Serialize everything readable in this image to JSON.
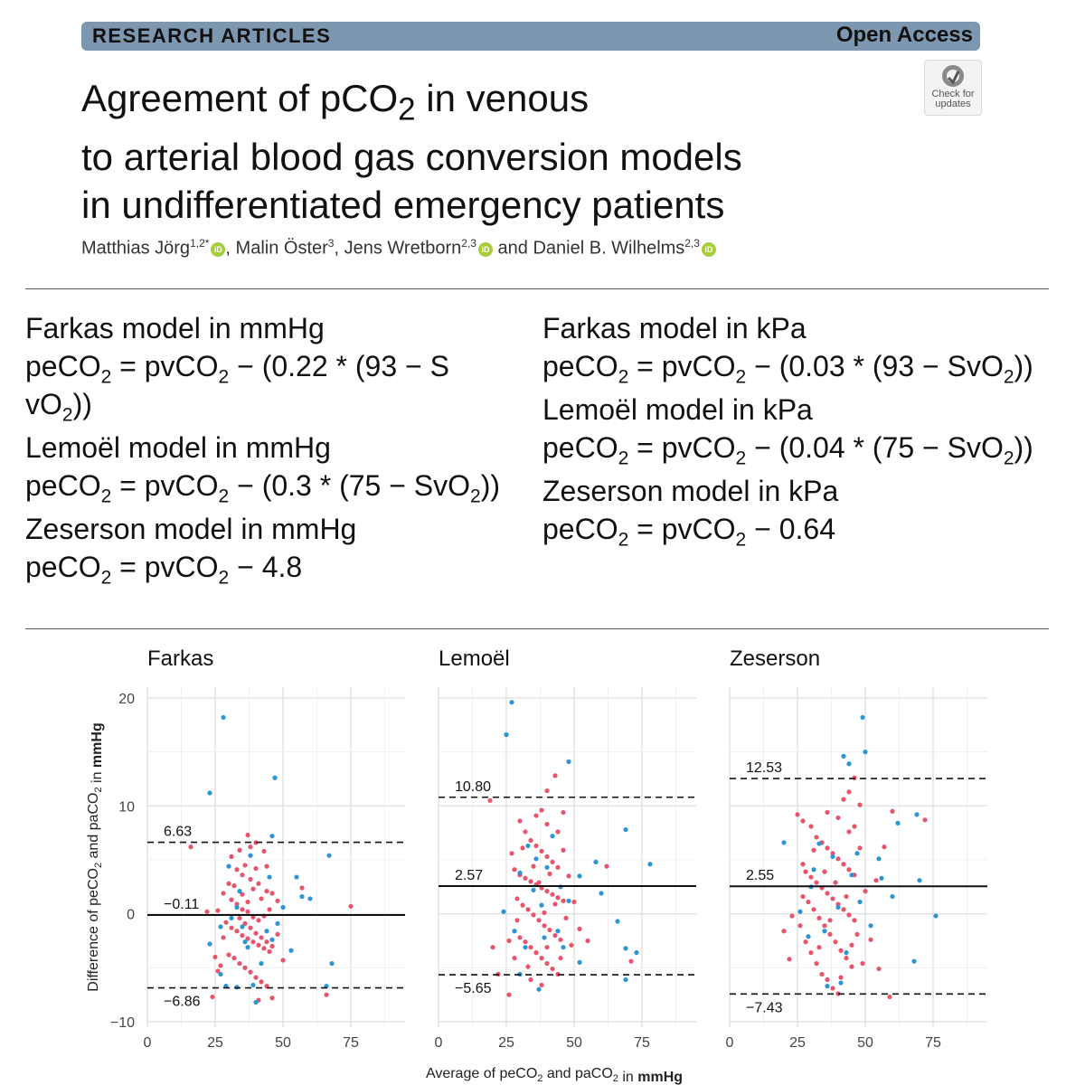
{
  "header": {
    "section": "RESEARCH ARTICLES",
    "access": "Open Access",
    "check_updates": [
      "Check for",
      "updates"
    ]
  },
  "title_lines": [
    [
      "Agreement of pCO",
      "2",
      " in venous"
    ],
    [
      "to arterial blood gas conversion models"
    ],
    [
      "in undifferentiated emergency patients"
    ]
  ],
  "authors": [
    {
      "name": "Matthias Jörg",
      "aff": "1,2*",
      "orcid": true,
      "sep": ", "
    },
    {
      "name": "Malin Öster",
      "aff": "3",
      "orcid": false,
      "sep": ", "
    },
    {
      "name": "Jens Wretborn",
      "aff": "2,3",
      "orcid": true,
      "sep": " and "
    },
    {
      "name": "Daniel B. Wilhelms",
      "aff": "2,3",
      "orcid": true,
      "sep": ""
    }
  ],
  "formulas": {
    "left": [
      {
        "name": "Farkas model in mmHg",
        "lines": [
          [
            "peCO",
            "2",
            " = pvCO",
            "2",
            " − (0.22 * (93 − S"
          ],
          [
            "vO",
            "2",
            "))"
          ]
        ]
      },
      {
        "name": "Lemoël model in mmHg",
        "lines": [
          [
            "peCO",
            "2",
            " = pvCO",
            "2",
            " − (0.3 * (75 − SvO",
            "2",
            "))"
          ]
        ]
      },
      {
        "name": "Zeserson model in mmHg",
        "lines": [
          [
            "peCO",
            "2",
            " = pvCO",
            "2",
            " − 4.8"
          ]
        ]
      }
    ],
    "right": [
      {
        "name": "Farkas model in kPa",
        "lines": [
          [
            "peCO",
            "2",
            " = pvCO",
            "2",
            " − (0.03 * (93 − SvO",
            "2",
            "))"
          ]
        ]
      },
      {
        "name": "Lemoël model in kPa",
        "lines": [
          [
            "peCO",
            "2",
            " = pvCO",
            "2",
            " − (0.04 * (75 − SvO",
            "2",
            "))"
          ]
        ]
      },
      {
        "name": "Zeserson model in kPa",
        "lines": [
          [
            "peCO",
            "2",
            " = pvCO",
            "2",
            " − 0.64"
          ]
        ]
      }
    ]
  },
  "chart_data": [
    {
      "type": "scatter",
      "title": "Farkas",
      "xlim": [
        0,
        95
      ],
      "ylim": [
        -10.5,
        21
      ],
      "x_ticks": [
        0,
        25,
        50,
        75
      ],
      "y_ticks": [
        -10,
        0,
        10,
        20
      ],
      "mean": -0.11,
      "loa_upper": 6.63,
      "loa_lower": -6.86,
      "labels": {
        "mean": "−0.11",
        "upper": "6.63",
        "lower": "−6.86"
      },
      "colors": {
        "blue": "#2b95d6",
        "red": "#e8546c"
      },
      "series_blue": [
        [
          28,
          18.2
        ],
        [
          23,
          11.2
        ],
        [
          47,
          12.6
        ],
        [
          46,
          7.2
        ],
        [
          67,
          5.4
        ],
        [
          55,
          3.4
        ],
        [
          57,
          1.6
        ],
        [
          60,
          1.4
        ],
        [
          50,
          0.6
        ],
        [
          48,
          -0.9
        ],
        [
          46,
          -2.4
        ],
        [
          53,
          -3.4
        ],
        [
          42,
          -4.6
        ],
        [
          68,
          -4.6
        ],
        [
          39,
          -6.6
        ],
        [
          66,
          -6.7
        ],
        [
          40,
          -8.2
        ],
        [
          33,
          -6.8
        ],
        [
          29,
          -6.7
        ],
        [
          23,
          -2.8
        ],
        [
          27,
          -5.6
        ],
        [
          31,
          -0.4
        ],
        [
          35,
          -1.2
        ],
        [
          44,
          -1.6
        ],
        [
          36,
          -2.6
        ],
        [
          30,
          4.4
        ],
        [
          38,
          5.4
        ],
        [
          33,
          0.6
        ],
        [
          45,
          3.4
        ],
        [
          34,
          2.1
        ],
        [
          37,
          -3.1
        ],
        [
          27,
          -1.2
        ]
      ],
      "series_red": [
        [
          16,
          6.2
        ],
        [
          57,
          2.4
        ],
        [
          66,
          -7.5
        ],
        [
          75,
          0.7
        ],
        [
          41,
          -8
        ],
        [
          46,
          -7.8
        ],
        [
          24,
          -7.7
        ],
        [
          26,
          -5.3
        ],
        [
          37,
          7.3
        ],
        [
          40,
          6.6
        ],
        [
          43,
          5.8
        ],
        [
          31,
          5.3
        ],
        [
          33,
          4.1
        ],
        [
          35,
          3.6
        ],
        [
          38,
          3.2
        ],
        [
          41,
          2.8
        ],
        [
          44,
          2.1
        ],
        [
          28,
          1.9
        ],
        [
          31,
          1.3
        ],
        [
          33,
          0.9
        ],
        [
          35,
          0.4
        ],
        [
          37,
          0.2
        ],
        [
          39,
          -0.3
        ],
        [
          41,
          -0.6
        ],
        [
          43,
          -0.2
        ],
        [
          45,
          0.4
        ],
        [
          29,
          -0.8
        ],
        [
          31,
          -1.3
        ],
        [
          33,
          -1.6
        ],
        [
          35,
          -2
        ],
        [
          37,
          -2.3
        ],
        [
          39,
          -2.6
        ],
        [
          41,
          -2.9
        ],
        [
          43,
          -3.2
        ],
        [
          45,
          -3.5
        ],
        [
          30,
          -3.8
        ],
        [
          32,
          -4.1
        ],
        [
          34,
          -4.6
        ],
        [
          36,
          -5
        ],
        [
          38,
          -5.4
        ],
        [
          40,
          -5.9
        ],
        [
          42,
          -6.3
        ],
        [
          44,
          -6.7
        ],
        [
          27,
          -4.8
        ],
        [
          25,
          -4
        ],
        [
          35,
          1.8
        ],
        [
          37,
          1.1
        ],
        [
          39,
          2.3
        ],
        [
          32,
          2.6
        ],
        [
          34,
          -0.4
        ],
        [
          36,
          -0.9
        ],
        [
          38,
          -1.3
        ],
        [
          40,
          -1.8
        ],
        [
          42,
          -2.2
        ],
        [
          44,
          -2.6
        ],
        [
          46,
          -3
        ],
        [
          26,
          0.3
        ],
        [
          28,
          -2.2
        ],
        [
          48,
          -1.9
        ],
        [
          50,
          -4.3
        ],
        [
          36,
          4.5
        ],
        [
          40,
          4.2
        ],
        [
          30,
          2.8
        ],
        [
          42,
          1.4
        ],
        [
          22,
          0.2
        ],
        [
          34,
          5.9
        ],
        [
          38,
          6.2
        ],
        [
          44,
          4.4
        ],
        [
          46,
          1.9
        ],
        [
          48,
          1.2
        ]
      ]
    },
    {
      "type": "scatter",
      "title": "Lemoël",
      "xlim": [
        0,
        95
      ],
      "ylim": [
        -10.5,
        21
      ],
      "x_ticks": [
        0,
        25,
        50,
        75
      ],
      "y_ticks": [
        -10,
        0,
        10,
        20
      ],
      "mean": 2.57,
      "loa_upper": 10.8,
      "loa_lower": -5.65,
      "labels": {
        "mean": "2.57",
        "upper": "10.80",
        "lower": "−5.65"
      },
      "colors": {
        "blue": "#2b95d6",
        "red": "#e8546c"
      },
      "series_blue": [
        [
          27,
          19.6
        ],
        [
          25,
          16.6
        ],
        [
          48,
          14.1
        ],
        [
          78,
          4.6
        ],
        [
          69,
          7.8
        ],
        [
          58,
          4.8
        ],
        [
          60,
          1.9
        ],
        [
          66,
          -0.7
        ],
        [
          69,
          -3.2
        ],
        [
          73,
          -3.6
        ],
        [
          69,
          -6.1
        ],
        [
          52,
          -4.5
        ],
        [
          37,
          -7
        ],
        [
          30,
          -5.6
        ],
        [
          48,
          1.2
        ],
        [
          45,
          2.5
        ],
        [
          33,
          6.3
        ],
        [
          36,
          5.1
        ],
        [
          40,
          4.3
        ],
        [
          42,
          7.2
        ],
        [
          30,
          3.8
        ],
        [
          35,
          2.2
        ],
        [
          38,
          0.8
        ],
        [
          44,
          -1.6
        ],
        [
          28,
          -1.6
        ],
        [
          32,
          -3.1
        ],
        [
          46,
          -3.1
        ],
        [
          39,
          -2.2
        ],
        [
          24,
          0.2
        ],
        [
          52,
          3.5
        ]
      ],
      "series_red": [
        [
          19,
          10.5
        ],
        [
          20,
          -3.1
        ],
        [
          22,
          -5.6
        ],
        [
          26,
          -7.5
        ],
        [
          43,
          12.8
        ],
        [
          46,
          9.4
        ],
        [
          40,
          11.4
        ],
        [
          38,
          9.6
        ],
        [
          71,
          -4.4
        ],
        [
          62,
          4.4
        ],
        [
          55,
          -2.5
        ],
        [
          30,
          8.6
        ],
        [
          32,
          7.6
        ],
        [
          34,
          6.8
        ],
        [
          36,
          6.3
        ],
        [
          38,
          5.8
        ],
        [
          40,
          5.3
        ],
        [
          42,
          4.8
        ],
        [
          44,
          4.3
        ],
        [
          28,
          4.1
        ],
        [
          30,
          3.6
        ],
        [
          32,
          3.3
        ],
        [
          34,
          3
        ],
        [
          36,
          2.7
        ],
        [
          38,
          2.4
        ],
        [
          40,
          2.1
        ],
        [
          42,
          1.8
        ],
        [
          44,
          1.5
        ],
        [
          46,
          1.2
        ],
        [
          29,
          1.4
        ],
        [
          31,
          0.8
        ],
        [
          33,
          0.4
        ],
        [
          35,
          -0.1
        ],
        [
          37,
          -0.6
        ],
        [
          39,
          -1.1
        ],
        [
          41,
          -1.5
        ],
        [
          43,
          -2
        ],
        [
          45,
          -2.4
        ],
        [
          30,
          -2.2
        ],
        [
          32,
          -2.6
        ],
        [
          34,
          -3.1
        ],
        [
          36,
          -3.6
        ],
        [
          38,
          -4.1
        ],
        [
          40,
          -4.6
        ],
        [
          42,
          -5.1
        ],
        [
          44,
          -5.6
        ],
        [
          26,
          -2.5
        ],
        [
          28,
          -4.1
        ],
        [
          34,
          -6.1
        ],
        [
          38,
          -6.6
        ],
        [
          40,
          -3.1
        ],
        [
          48,
          3.5
        ],
        [
          50,
          1.1
        ],
        [
          52,
          -1.4
        ],
        [
          36,
          9.1
        ],
        [
          40,
          8.3
        ],
        [
          44,
          7.6
        ],
        [
          46,
          5.9
        ],
        [
          27,
          5.6
        ],
        [
          31,
          6.1
        ],
        [
          35,
          4.4
        ],
        [
          39,
          0.1
        ],
        [
          43,
          0.9
        ],
        [
          47,
          -0.4
        ],
        [
          49,
          -2.9
        ],
        [
          33,
          -4.9
        ],
        [
          37,
          2.9
        ],
        [
          41,
          3.7
        ],
        [
          29,
          -0.6
        ],
        [
          45,
          -4.1
        ]
      ]
    },
    {
      "type": "scatter",
      "title": "Zeserson",
      "xlim": [
        0,
        95
      ],
      "ylim": [
        -10.5,
        21
      ],
      "x_ticks": [
        0,
        25,
        50,
        75
      ],
      "y_ticks": [
        -10,
        0,
        10,
        20
      ],
      "mean": 2.55,
      "loa_upper": 12.53,
      "loa_lower": -7.43,
      "labels": {
        "mean": "2.55",
        "upper": "12.53",
        "lower": "−7.43"
      },
      "colors": {
        "blue": "#2b95d6",
        "red": "#e8546c"
      },
      "series_blue": [
        [
          49,
          18.2
        ],
        [
          50,
          15
        ],
        [
          42,
          14.6
        ],
        [
          44,
          13.9
        ],
        [
          69,
          9.2
        ],
        [
          20,
          6.6
        ],
        [
          62,
          8.4
        ],
        [
          70,
          3.1
        ],
        [
          76,
          -0.2
        ],
        [
          68,
          -4.4
        ],
        [
          60,
          1.6
        ],
        [
          55,
          5.1
        ],
        [
          36,
          -6.7
        ],
        [
          41,
          -6.4
        ],
        [
          30,
          2.5
        ],
        [
          33,
          6.5
        ],
        [
          38,
          5.3
        ],
        [
          45,
          3.6
        ],
        [
          48,
          1.1
        ],
        [
          52,
          -1.1
        ],
        [
          35,
          -1.6
        ],
        [
          29,
          -2.1
        ],
        [
          43,
          -3.6
        ],
        [
          40,
          0.6
        ],
        [
          31,
          4.1
        ],
        [
          47,
          5.6
        ],
        [
          26,
          0.2
        ],
        [
          56,
          3.3
        ]
      ],
      "series_red": [
        [
          20,
          -1.6
        ],
        [
          22,
          -4.2
        ],
        [
          23,
          -0.2
        ],
        [
          25,
          9.2
        ],
        [
          27,
          8.6
        ],
        [
          59,
          -7.7
        ],
        [
          46,
          12.6
        ],
        [
          44,
          11.3
        ],
        [
          42,
          10.6
        ],
        [
          48,
          10.1
        ],
        [
          60,
          9.5
        ],
        [
          72,
          8.7
        ],
        [
          57,
          6.2
        ],
        [
          54,
          3.1
        ],
        [
          30,
          8.1
        ],
        [
          32,
          7.1
        ],
        [
          34,
          6.6
        ],
        [
          36,
          6.1
        ],
        [
          38,
          5.6
        ],
        [
          40,
          5.1
        ],
        [
          42,
          4.6
        ],
        [
          44,
          4.1
        ],
        [
          46,
          3.6
        ],
        [
          28,
          3.9
        ],
        [
          30,
          3.4
        ],
        [
          32,
          2.9
        ],
        [
          34,
          2.4
        ],
        [
          36,
          1.9
        ],
        [
          38,
          1.4
        ],
        [
          40,
          0.9
        ],
        [
          42,
          0.4
        ],
        [
          44,
          -0.1
        ],
        [
          46,
          -0.6
        ],
        [
          29,
          1.1
        ],
        [
          31,
          0.4
        ],
        [
          33,
          -0.4
        ],
        [
          35,
          -1.1
        ],
        [
          37,
          -1.9
        ],
        [
          39,
          -2.6
        ],
        [
          41,
          -3.4
        ],
        [
          43,
          -4.1
        ],
        [
          45,
          -4.9
        ],
        [
          28,
          -2.6
        ],
        [
          30,
          -3.6
        ],
        [
          32,
          -4.6
        ],
        [
          34,
          -5.6
        ],
        [
          36,
          -6.1
        ],
        [
          38,
          -6.9
        ],
        [
          40,
          -7.4
        ],
        [
          26,
          -1.1
        ],
        [
          27,
          4.6
        ],
        [
          48,
          6.1
        ],
        [
          50,
          2.1
        ],
        [
          52,
          -2.4
        ],
        [
          55,
          -5.1
        ],
        [
          36,
          9.4
        ],
        [
          40,
          8.9
        ],
        [
          44,
          7.6
        ],
        [
          31,
          5.9
        ],
        [
          35,
          3.9
        ],
        [
          39,
          2.9
        ],
        [
          43,
          1.6
        ],
        [
          47,
          -1.9
        ],
        [
          33,
          -3.1
        ],
        [
          37,
          -0.6
        ],
        [
          41,
          -5.9
        ],
        [
          45,
          -2.9
        ],
        [
          49,
          -4.6
        ],
        [
          27,
          1.6
        ],
        [
          46,
          8.1
        ]
      ]
    }
  ],
  "figure_axes": {
    "y_label_parts": [
      "Difference of peCO",
      "2",
      " and paCO",
      "2",
      " in ",
      "mmHg"
    ],
    "x_label_parts": [
      "Average of peCO",
      "2",
      " and paCO",
      "2",
      " in ",
      "mmHg"
    ]
  }
}
